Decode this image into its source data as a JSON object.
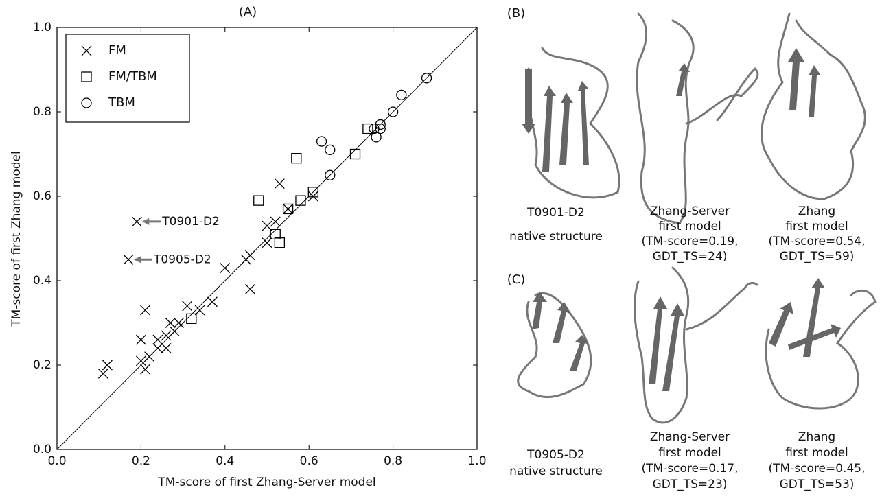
{
  "chart_data": {
    "type": "scatter",
    "title": "(A)",
    "x_label": "TM-score of first Zhang-Server model",
    "y_label": "TM-score of first Zhang model",
    "xlim": [
      0.0,
      1.0
    ],
    "ylim": [
      0.0,
      1.0
    ],
    "xticks": [
      {
        "value": 0,
        "label": "0.0"
      },
      0.2,
      0.4,
      0.6,
      0.8,
      {
        "value": 1,
        "label": "1.0"
      }
    ],
    "yticks": [
      {
        "value": 0,
        "label": "0.0"
      },
      0.2,
      0.4,
      0.6,
      0.8,
      {
        "value": 1,
        "label": "1.0"
      }
    ],
    "diagonal": true,
    "legend": "upper left",
    "series": [
      {
        "name": "FM",
        "marker": "x",
        "color": "#000000",
        "x": [
          0.11,
          0.12,
          0.19,
          0.17,
          0.2,
          0.21,
          0.2,
          0.21,
          0.22,
          0.24,
          0.24,
          0.26,
          0.26,
          0.27,
          0.28,
          0.29,
          0.31,
          0.34,
          0.37,
          0.4,
          0.45,
          0.46,
          0.46,
          0.5,
          0.5,
          0.52,
          0.53,
          0.55,
          0.61
        ],
        "values": [
          0.18,
          0.2,
          0.54,
          0.45,
          0.26,
          0.33,
          0.21,
          0.19,
          0.22,
          0.24,
          0.26,
          0.24,
          0.27,
          0.3,
          0.28,
          0.3,
          0.34,
          0.33,
          0.35,
          0.43,
          0.45,
          0.46,
          0.38,
          0.53,
          0.49,
          0.54,
          0.63,
          0.57,
          0.6
        ]
      },
      {
        "name": "FM/TBM",
        "marker": "square",
        "color": "#000000",
        "x": [
          0.32,
          0.53,
          0.52,
          0.48,
          0.55,
          0.58,
          0.61,
          0.57,
          0.71,
          0.74
        ],
        "values": [
          0.31,
          0.49,
          0.51,
          0.59,
          0.57,
          0.59,
          0.61,
          0.69,
          0.7,
          0.76
        ]
      },
      {
        "name": "TBM",
        "marker": "circle",
        "color": "#000000",
        "x": [
          0.63,
          0.65,
          0.65,
          0.755,
          0.77,
          0.77,
          0.76,
          0.8,
          0.82,
          0.88
        ],
        "values": [
          0.73,
          0.71,
          0.65,
          0.76,
          0.76,
          0.77,
          0.74,
          0.8,
          0.84,
          0.88
        ]
      }
    ],
    "annotations": [
      {
        "text": "T0901-D2",
        "series": 0,
        "point": 2
      },
      {
        "text": "T0905-D2",
        "series": 0,
        "point": 3
      }
    ]
  },
  "panels": [
    {
      "label": "(B)",
      "captions": [
        [
          "T0901-D2",
          "native structure"
        ],
        [
          "Zhang-Server",
          "first model",
          "(TM-score=0.19,",
          "GDT_TS=24)"
        ],
        [
          "Zhang",
          "first model",
          "(TM-score=0.54,",
          "GDT_TS=59)"
        ]
      ]
    },
    {
      "label": "(C)",
      "captions": [
        [
          "T0905-D2",
          "native structure"
        ],
        [
          "Zhang-Server",
          "first model",
          "(TM-score=0.17,",
          "GDT_TS=23)"
        ],
        [
          "Zhang",
          "first model",
          "(TM-score=0.45,",
          "GDT_TS=53)"
        ]
      ]
    }
  ]
}
